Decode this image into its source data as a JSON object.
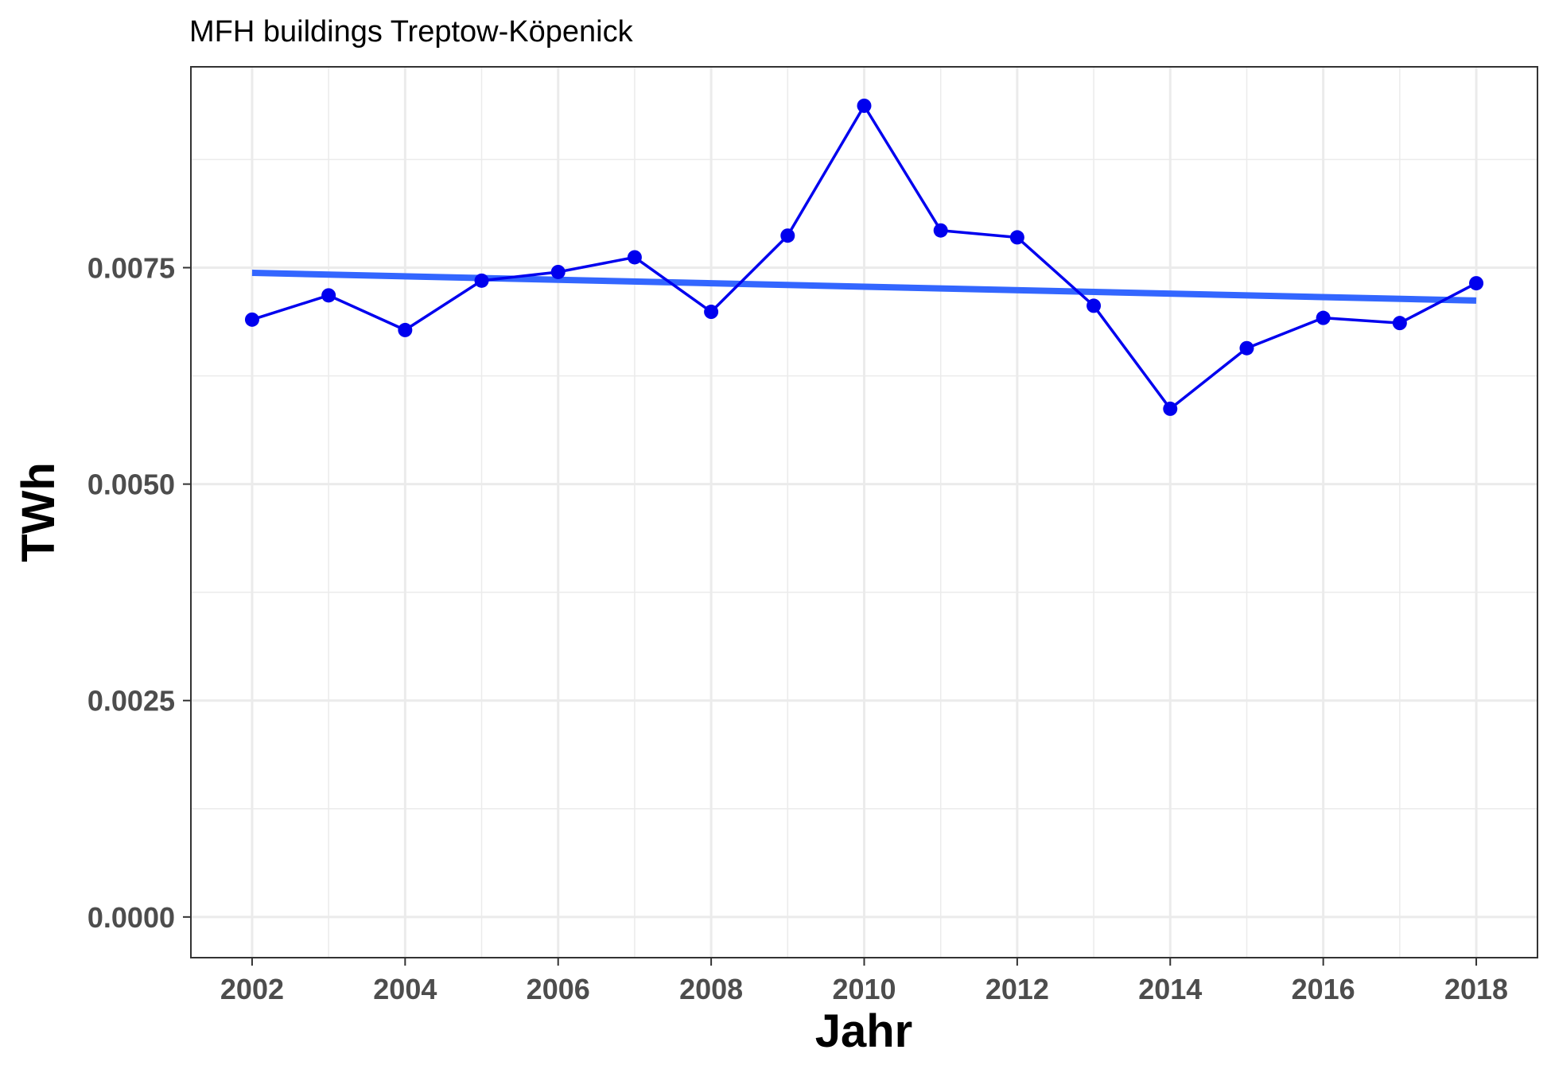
{
  "chart_data": {
    "type": "line",
    "title": "MFH buildings Treptow-Köpenick",
    "xlabel": "Jahr",
    "ylabel": "TWh",
    "xlim": [
      2001.2,
      2018.8
    ],
    "ylim": [
      -0.00047,
      0.00982
    ],
    "x_ticks": [
      2002,
      2004,
      2006,
      2008,
      2010,
      2012,
      2014,
      2016,
      2018
    ],
    "x_tick_labels": [
      "2002",
      "2004",
      "2006",
      "2008",
      "2010",
      "2012",
      "2014",
      "2016",
      "2018"
    ],
    "y_ticks": [
      0,
      0.0025,
      0.005,
      0.0075
    ],
    "y_tick_labels": [
      "0.0000",
      "0.0025",
      "0.0050",
      "0.0075"
    ],
    "grid": true,
    "series": [
      {
        "color": "#0000ee",
        "x": [
          2002,
          2003,
          2004,
          2005,
          2006,
          2007,
          2008,
          2009,
          2010,
          2011,
          2012,
          2013,
          2014,
          2015,
          2016,
          2017,
          2018
        ],
        "values": [
          0.0069,
          0.00718,
          0.00678,
          0.00735,
          0.00745,
          0.00762,
          0.00699,
          0.00787,
          0.00937,
          0.00793,
          0.00785,
          0.00706,
          0.00587,
          0.00657,
          0.00692,
          0.00686,
          0.00732
        ]
      }
    ],
    "trend_line": {
      "color": "#3366ff",
      "x": [
        2002,
        2018
      ],
      "values": [
        0.00744,
        0.00712
      ]
    }
  }
}
